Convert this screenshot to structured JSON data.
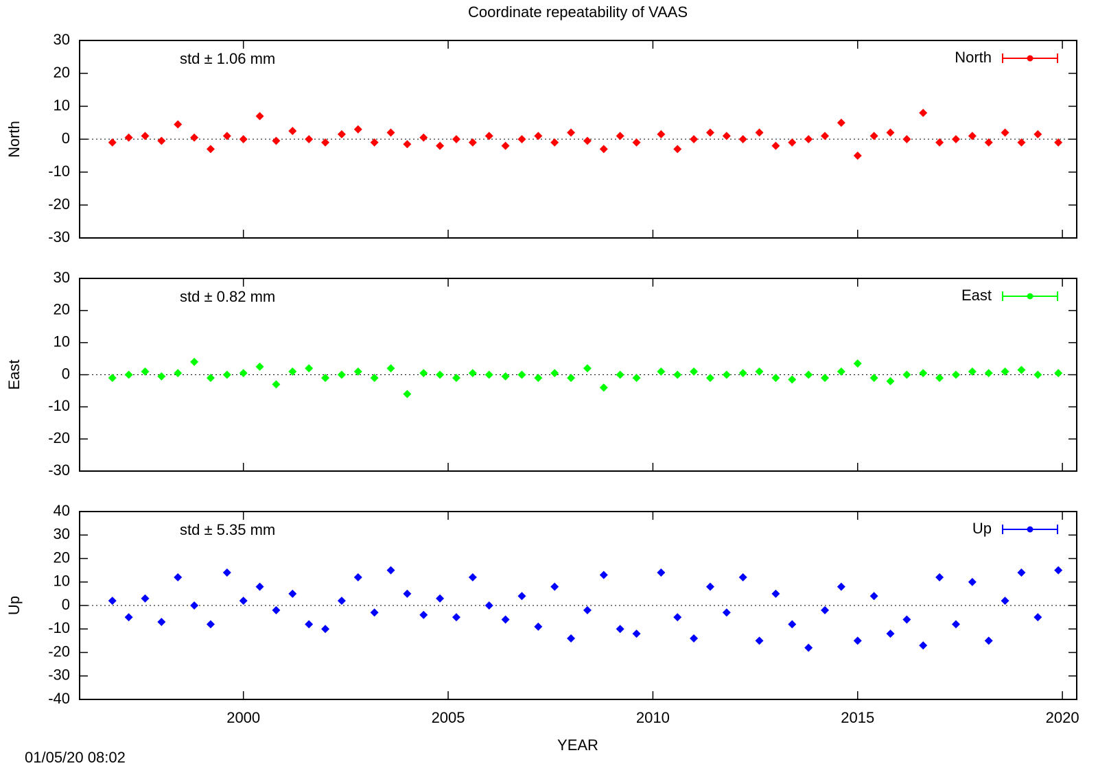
{
  "title": "Coordinate repeatability of VAAS",
  "xlabel": "YEAR",
  "timestamp": "01/05/20 08:02",
  "chart_data": [
    {
      "type": "scatter",
      "ylabel": "North",
      "annotation": "std ± 1.06 mm",
      "legend": "top right",
      "zeroaxis": true,
      "xlim": [
        1996,
        2020.35
      ],
      "xticks": [
        2000,
        2005,
        2010,
        2015,
        2020
      ],
      "ylim": [
        -30,
        30
      ],
      "yticks": [
        -30,
        -20,
        -10,
        0,
        10,
        20,
        30
      ],
      "series": [
        {
          "name": "North",
          "color": "#ff0000",
          "x": [
            1996.8,
            1997.2,
            1997.6,
            1998,
            1998.4,
            1998.8,
            1999.2,
            1999.6,
            2000,
            2000.4,
            2000.8,
            2001.2,
            2001.6,
            2002,
            2002.4,
            2002.8,
            2003.2,
            2003.6,
            2004,
            2004.4,
            2004.8,
            2005.2,
            2005.6,
            2006,
            2006.4,
            2006.8,
            2007.2,
            2007.6,
            2008,
            2008.4,
            2008.8,
            2009.2,
            2009.6,
            2010.2,
            2010.6,
            2011,
            2011.4,
            2011.8,
            2012.2,
            2012.6,
            2013,
            2013.4,
            2013.8,
            2014.2,
            2014.6,
            2015,
            2015.4,
            2015.8,
            2016.2,
            2016.6,
            2017,
            2017.4,
            2017.8,
            2018.2,
            2018.6,
            2019,
            2019.4,
            2019.9
          ],
          "values": [
            -1,
            0.5,
            1,
            -0.5,
            4.5,
            0.5,
            -3,
            1,
            0,
            7,
            -0.5,
            2.5,
            0,
            -1,
            1.5,
            3,
            -1,
            2,
            -1.5,
            0.5,
            -2,
            0,
            -1,
            1,
            -2,
            0,
            1,
            -1,
            2,
            -0.5,
            -3,
            1,
            -1,
            1.5,
            -3,
            0,
            2,
            1,
            0,
            2,
            -2,
            -1,
            0,
            1,
            5,
            -5,
            1,
            2,
            0,
            8,
            -1,
            0,
            1,
            -1,
            2,
            -1,
            1.5,
            -1
          ]
        }
      ]
    },
    {
      "type": "scatter",
      "ylabel": "East",
      "annotation": "std ± 0.82 mm",
      "legend": "top right",
      "zeroaxis": true,
      "xlim": [
        1996,
        2020.35
      ],
      "xticks": [
        2000,
        2005,
        2010,
        2015,
        2020
      ],
      "ylim": [
        -30,
        30
      ],
      "yticks": [
        -30,
        -20,
        -10,
        0,
        10,
        20,
        30
      ],
      "series": [
        {
          "name": "East",
          "color": "#00ff00",
          "x": [
            1996.8,
            1997.2,
            1997.6,
            1998,
            1998.4,
            1998.8,
            1999.2,
            1999.6,
            2000,
            2000.4,
            2000.8,
            2001.2,
            2001.6,
            2002,
            2002.4,
            2002.8,
            2003.2,
            2003.6,
            2004,
            2004.4,
            2004.8,
            2005.2,
            2005.6,
            2006,
            2006.4,
            2006.8,
            2007.2,
            2007.6,
            2008,
            2008.4,
            2008.8,
            2009.2,
            2009.6,
            2010.2,
            2010.6,
            2011,
            2011.4,
            2011.8,
            2012.2,
            2012.6,
            2013,
            2013.4,
            2013.8,
            2014.2,
            2014.6,
            2015,
            2015.4,
            2015.8,
            2016.2,
            2016.6,
            2017,
            2017.4,
            2017.8,
            2018.2,
            2018.6,
            2019,
            2019.4,
            2019.9
          ],
          "values": [
            -1,
            0,
            1,
            -0.5,
            0.5,
            4,
            -1,
            0,
            0.5,
            2.5,
            -3,
            1,
            2,
            -1,
            0,
            1,
            -1,
            2,
            -6,
            0.5,
            0,
            -1,
            0.5,
            0,
            -0.5,
            0,
            -1,
            0.5,
            -1,
            2,
            -4,
            0,
            -1,
            1,
            0,
            1,
            -1,
            0,
            0.5,
            1,
            -1,
            -1.5,
            0,
            -1,
            1,
            3.5,
            -1,
            -2,
            0,
            0.5,
            -1,
            0,
            1,
            0.5,
            1,
            1.5,
            0,
            0.5
          ]
        }
      ]
    },
    {
      "type": "scatter",
      "ylabel": "Up",
      "annotation": "std ± 5.35 mm",
      "legend": "top right",
      "zeroaxis": true,
      "xlim": [
        1996,
        2020.35
      ],
      "xticks": [
        2000,
        2005,
        2010,
        2015,
        2020
      ],
      "ylim": [
        -40,
        40
      ],
      "yticks": [
        -40,
        -30,
        -20,
        -10,
        0,
        10,
        20,
        30,
        40
      ],
      "series": [
        {
          "name": "Up",
          "color": "#0000ff",
          "x": [
            1996.8,
            1997.2,
            1997.6,
            1998,
            1998.4,
            1998.8,
            1999.2,
            1999.6,
            2000,
            2000.4,
            2000.8,
            2001.2,
            2001.6,
            2002,
            2002.4,
            2002.8,
            2003.2,
            2003.6,
            2004,
            2004.4,
            2004.8,
            2005.2,
            2005.6,
            2006,
            2006.4,
            2006.8,
            2007.2,
            2007.6,
            2008,
            2008.4,
            2008.8,
            2009.2,
            2009.6,
            2010.2,
            2010.6,
            2011,
            2011.4,
            2011.8,
            2012.2,
            2012.6,
            2013,
            2013.4,
            2013.8,
            2014.2,
            2014.6,
            2015,
            2015.4,
            2015.8,
            2016.2,
            2016.6,
            2017,
            2017.4,
            2017.8,
            2018.2,
            2018.6,
            2019,
            2019.4,
            2019.9
          ],
          "values": [
            2,
            -5,
            3,
            -7,
            12,
            0,
            -8,
            14,
            2,
            8,
            -2,
            5,
            -8,
            -10,
            2,
            12,
            -3,
            15,
            5,
            -4,
            3,
            -5,
            12,
            0,
            -6,
            4,
            -9,
            8,
            -14,
            -2,
            13,
            -10,
            -12,
            14,
            -5,
            -14,
            8,
            -3,
            12,
            -15,
            5,
            -8,
            -18,
            -2,
            8,
            -15,
            4,
            -12,
            -6,
            -17,
            12,
            -8,
            10,
            -15,
            2,
            14,
            -5,
            15
          ]
        }
      ]
    }
  ]
}
